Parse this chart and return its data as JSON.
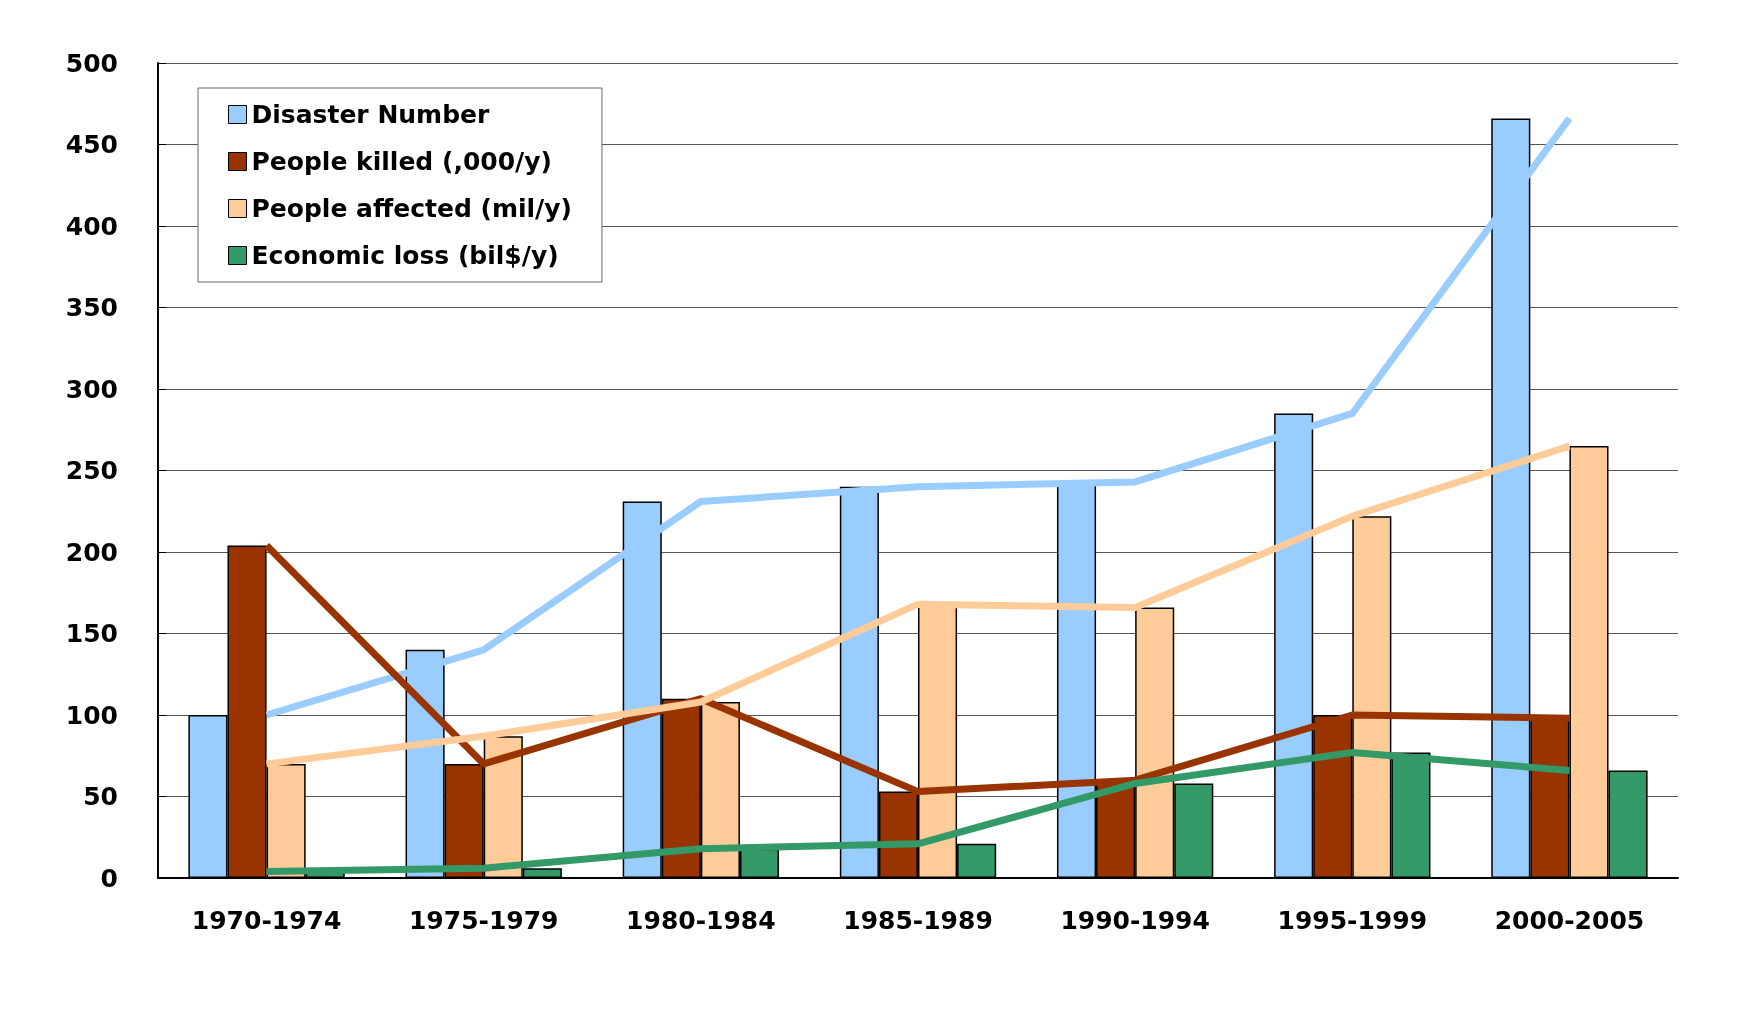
{
  "chart_data": {
    "type": "bar",
    "categories": [
      "1970-1974",
      "1975-1979",
      "1980-1984",
      "1985-1989",
      "1990-1994",
      "1995-1999",
      "2000-2005"
    ],
    "series": [
      {
        "name": "Disaster Number",
        "color": "#99ccff",
        "values": [
          100,
          140,
          231,
          240,
          243,
          285,
          466
        ]
      },
      {
        "name": "People killed (,000/y)",
        "color": "#993300",
        "values": [
          204,
          70,
          110,
          53,
          60,
          100,
          98
        ]
      },
      {
        "name": "People affected (mil/y)",
        "color": "#ffcc99",
        "values": [
          70,
          87,
          108,
          168,
          166,
          222,
          265
        ]
      },
      {
        "name": "Economic loss (bil$/y)",
        "color": "#339966",
        "values": [
          4,
          6,
          18,
          21,
          58,
          77,
          66
        ]
      },
      {
        "type": "line",
        "color": "#99ccff",
        "values": [
          100,
          140,
          231,
          240,
          243,
          285,
          466
        ]
      },
      {
        "type": "line",
        "color": "#993300",
        "values": [
          204,
          70,
          110,
          53,
          60,
          100,
          98
        ]
      },
      {
        "type": "line",
        "color": "#ffcc99",
        "values": [
          70,
          87,
          108,
          168,
          166,
          222,
          265
        ]
      },
      {
        "type": "line",
        "color": "#339966",
        "values": [
          4,
          6,
          18,
          21,
          58,
          77,
          66
        ]
      }
    ],
    "ylim": [
      0,
      500
    ],
    "yticks": [
      0,
      50,
      100,
      150,
      200,
      250,
      300,
      350,
      400,
      450,
      500
    ],
    "grid": "y",
    "legend": "top left",
    "marker": "none"
  }
}
